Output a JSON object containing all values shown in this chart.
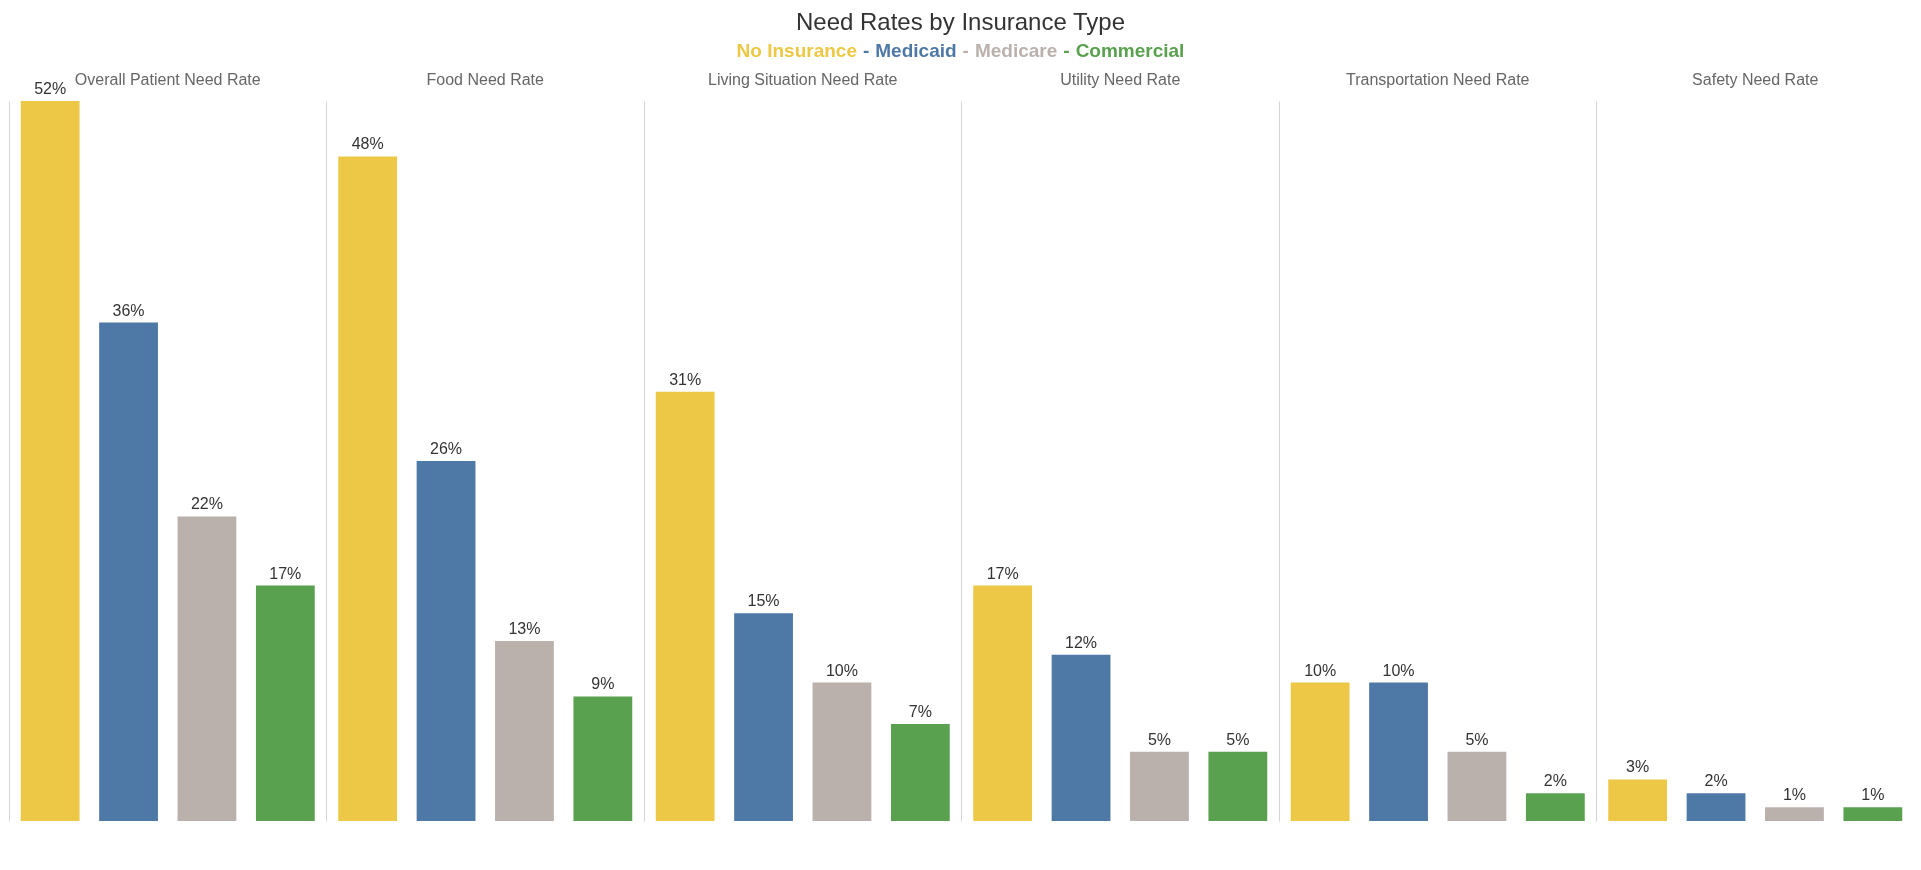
{
  "chart_data": {
    "type": "bar",
    "title": "Need Rates by Insurance Type",
    "categories": [
      "Overall Patient Need Rate",
      "Food Need Rate",
      "Living Situation Need Rate",
      "Utility Need Rate",
      "Transportation Need Rate",
      "Safety Need Rate"
    ],
    "series": [
      {
        "name": "No Insurance",
        "color": "#ecc846",
        "values": [
          52,
          48,
          31,
          17,
          10,
          3
        ],
        "value_labels": [
          "52%",
          "48%",
          "31%",
          "17%",
          "10%",
          "3%"
        ]
      },
      {
        "name": "Medicaid",
        "color": "#4e79a7",
        "values": [
          36,
          26,
          15,
          12,
          10,
          2
        ],
        "value_labels": [
          "36%",
          "26%",
          "15%",
          "12%",
          "10%",
          "2%"
        ]
      },
      {
        "name": "Medicare",
        "color": "#bab0ac",
        "values": [
          22,
          13,
          10,
          5,
          5,
          1
        ],
        "value_labels": [
          "22%",
          "13%",
          "10%",
          "5%",
          "5%",
          "1%"
        ]
      },
      {
        "name": "Commercial",
        "color": "#59a14f",
        "values": [
          17,
          9,
          7,
          5,
          2,
          1
        ],
        "value_labels": [
          "17%",
          "9%",
          "7%",
          "5%",
          "2%",
          "1%"
        ]
      }
    ],
    "annotations": [
      "-",
      "-",
      "-"
    ],
    "legend": "top",
    "grid": "x"
  }
}
